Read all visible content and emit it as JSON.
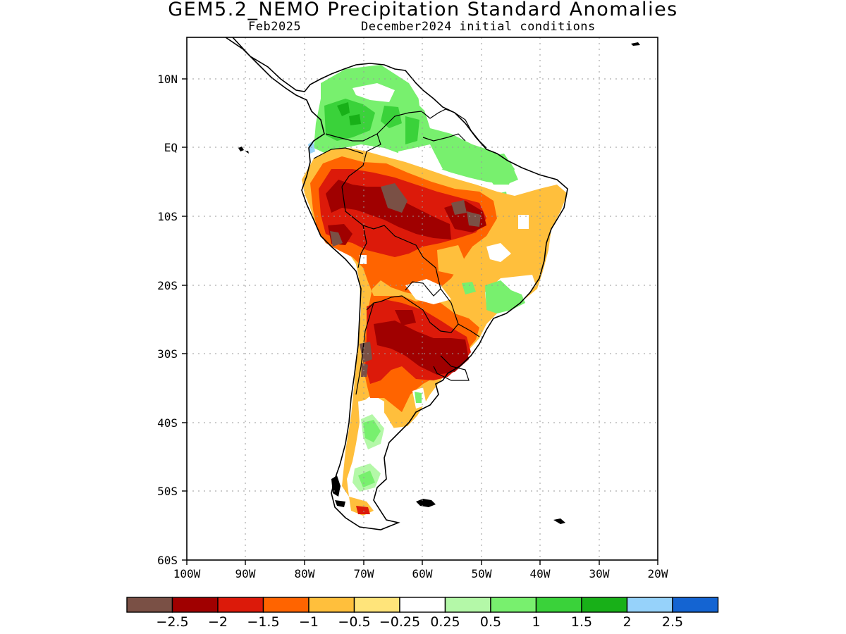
{
  "title": "GEM5.2_NEMO Precipitation Standard Anomalies",
  "subtitle_left": "Feb2025",
  "subtitle_right": "December2024 initial conditions",
  "chart_data": {
    "type": "heatmap",
    "region": "South America",
    "lon_range": [
      -100,
      -20
    ],
    "lat_range": [
      -60,
      16
    ],
    "x_tick_labels": [
      "100W",
      "90W",
      "80W",
      "70W",
      "60W",
      "50W",
      "40W",
      "30W",
      "20W"
    ],
    "y_tick_labels": [
      "10N",
      "EQ",
      "10S",
      "20S",
      "30S",
      "40S",
      "50S",
      "60S"
    ],
    "grid": "dotted",
    "colorbar": {
      "placement": "bottom",
      "colors": [
        "#7a5045",
        "#a00000",
        "#dc1a0a",
        "#ff6400",
        "#ffbf3c",
        "#ffe47a",
        "#ffffff",
        "#b4f8a8",
        "#78f06e",
        "#3ad23a",
        "#18b018",
        "#96d2fa",
        "#1464d2"
      ],
      "labels": [
        "−2.5",
        "−2",
        "−1.5",
        "−1",
        "−0.5",
        "−0.25",
        "0.25",
        "0.5",
        "1",
        "1.5",
        "2",
        "2.5"
      ]
    },
    "anomaly_features": [
      {
        "area": "Colombia / Venezuela",
        "level": "1 to 1.5",
        "color": "#3ad23a"
      },
      {
        "area": "Northern Amazon / Guianas",
        "level": "0.5 to 1",
        "color": "#78f06e"
      },
      {
        "area": "Western & Central Amazon",
        "level": "-2 to -2.5",
        "color": "#a00000"
      },
      {
        "area": "Central Brazil",
        "level": "-1 to -1.5",
        "color": "#ff6400"
      },
      {
        "area": "Northeast Brazil",
        "level": "-0.5 to -1",
        "color": "#ffbf3c"
      },
      {
        "area": "Southeast Brazil",
        "level": "0.5 to 1",
        "color": "#78f06e"
      },
      {
        "area": "Northern Argentina / Paraguay / Uruguay",
        "level": "-2 to -2.5",
        "color": "#a00000"
      },
      {
        "area": "Central Chile / Andes",
        "level": "below -2.5",
        "color": "#7a5045"
      },
      {
        "area": "Patagonia",
        "level": "0.5 to 1",
        "color": "#78f06e"
      }
    ]
  }
}
